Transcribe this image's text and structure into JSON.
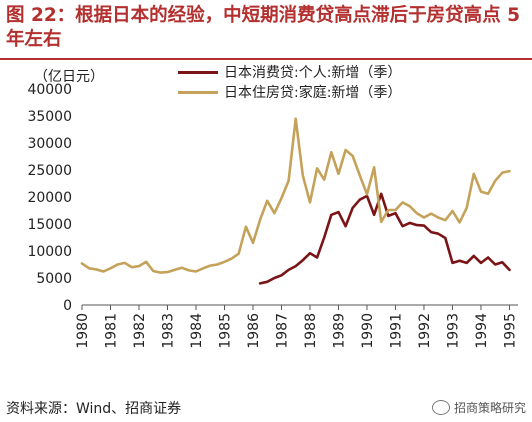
{
  "figure": {
    "title": "图 22：根据日本的经验，中短期消费贷高点滞后于房贷高点 5 年左右",
    "source": "资料来源：Wind、招商证券",
    "watermark": "招商策略研究"
  },
  "chart_data": {
    "type": "line",
    "unit_label": "（亿日元）",
    "ylim": [
      0,
      40000
    ],
    "yticks": [
      0,
      5000,
      10000,
      15000,
      20000,
      25000,
      30000,
      35000,
      40000
    ],
    "xlim": [
      1980,
      1995.3
    ],
    "xticks": [
      "1980",
      "1981",
      "1982",
      "1983",
      "1984",
      "1985",
      "1986",
      "1987",
      "1988",
      "1989",
      "1990",
      "1991",
      "1992",
      "1993",
      "1994",
      "1995"
    ],
    "grid": false,
    "legend": "top-center",
    "series": [
      {
        "name": "日本消费贷:个人:新增（季）",
        "color": "#7a1416",
        "points": [
          [
            1986.25,
            4000
          ],
          [
            1986.5,
            4300
          ],
          [
            1986.75,
            5000
          ],
          [
            1987.0,
            5500
          ],
          [
            1987.25,
            6500
          ],
          [
            1987.5,
            7200
          ],
          [
            1987.75,
            8300
          ],
          [
            1988.0,
            9600
          ],
          [
            1988.25,
            8800
          ],
          [
            1988.5,
            12500
          ],
          [
            1988.75,
            16700
          ],
          [
            1989.0,
            17200
          ],
          [
            1989.25,
            14600
          ],
          [
            1989.5,
            18000
          ],
          [
            1989.75,
            19500
          ],
          [
            1990.0,
            20200
          ],
          [
            1990.25,
            16700
          ],
          [
            1990.5,
            20600
          ],
          [
            1990.75,
            16500
          ],
          [
            1991.0,
            17000
          ],
          [
            1991.25,
            14600
          ],
          [
            1991.5,
            15200
          ],
          [
            1991.75,
            14800
          ],
          [
            1992.0,
            14700
          ],
          [
            1992.25,
            13500
          ],
          [
            1992.5,
            13200
          ],
          [
            1992.75,
            12400
          ],
          [
            1993.0,
            7800
          ],
          [
            1993.25,
            8200
          ],
          [
            1993.5,
            7800
          ],
          [
            1993.75,
            9100
          ],
          [
            1994.0,
            7800
          ],
          [
            1994.25,
            8800
          ],
          [
            1994.5,
            7500
          ],
          [
            1994.75,
            7900
          ],
          [
            1995.0,
            6500
          ]
        ]
      },
      {
        "name": "日本住房贷:家庭:新增（季）",
        "color": "#c4a25a",
        "points": [
          [
            1980.0,
            7700
          ],
          [
            1980.25,
            6800
          ],
          [
            1980.5,
            6600
          ],
          [
            1980.75,
            6200
          ],
          [
            1981.0,
            6800
          ],
          [
            1981.25,
            7500
          ],
          [
            1981.5,
            7800
          ],
          [
            1981.75,
            7000
          ],
          [
            1982.0,
            7200
          ],
          [
            1982.25,
            8000
          ],
          [
            1982.5,
            6300
          ],
          [
            1982.75,
            6000
          ],
          [
            1983.0,
            6100
          ],
          [
            1983.25,
            6500
          ],
          [
            1983.5,
            6900
          ],
          [
            1983.75,
            6400
          ],
          [
            1984.0,
            6200
          ],
          [
            1984.25,
            6800
          ],
          [
            1984.5,
            7300
          ],
          [
            1984.75,
            7500
          ],
          [
            1985.0,
            8000
          ],
          [
            1985.25,
            8600
          ],
          [
            1985.5,
            9500
          ],
          [
            1985.75,
            14500
          ],
          [
            1986.0,
            11500
          ],
          [
            1986.25,
            15800
          ],
          [
            1986.5,
            19300
          ],
          [
            1986.75,
            17000
          ],
          [
            1987.0,
            19800
          ],
          [
            1987.25,
            23000
          ],
          [
            1987.5,
            34500
          ],
          [
            1987.75,
            24000
          ],
          [
            1988.0,
            19000
          ],
          [
            1988.25,
            25300
          ],
          [
            1988.5,
            23200
          ],
          [
            1988.75,
            28300
          ],
          [
            1989.0,
            24300
          ],
          [
            1989.25,
            28700
          ],
          [
            1989.5,
            27600
          ],
          [
            1989.75,
            24000
          ],
          [
            1990.0,
            20500
          ],
          [
            1990.25,
            25500
          ],
          [
            1990.5,
            15400
          ],
          [
            1990.75,
            17600
          ],
          [
            1991.0,
            17600
          ],
          [
            1991.25,
            19000
          ],
          [
            1991.5,
            18300
          ],
          [
            1991.75,
            17000
          ],
          [
            1992.0,
            16200
          ],
          [
            1992.25,
            16900
          ],
          [
            1992.5,
            16200
          ],
          [
            1992.75,
            15700
          ],
          [
            1993.0,
            17400
          ],
          [
            1993.25,
            15300
          ],
          [
            1993.5,
            18000
          ],
          [
            1993.75,
            24300
          ],
          [
            1994.0,
            21000
          ],
          [
            1994.25,
            20600
          ],
          [
            1994.5,
            23000
          ],
          [
            1994.75,
            24500
          ],
          [
            1995.0,
            24800
          ]
        ]
      }
    ]
  }
}
